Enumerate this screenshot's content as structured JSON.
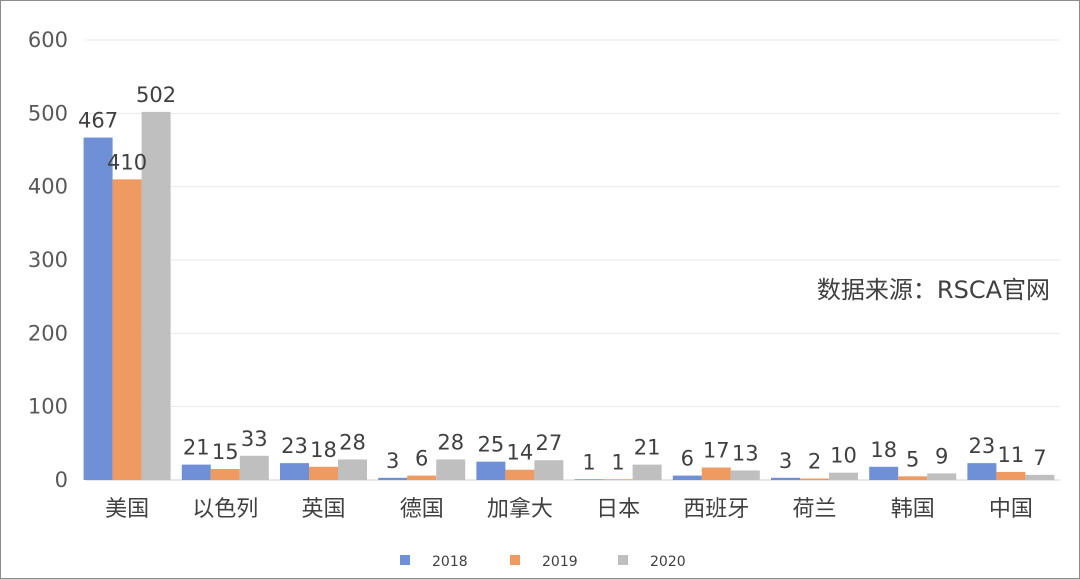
{
  "chart_data": {
    "type": "bar",
    "categories": [
      "美国",
      "以色列",
      "英国",
      "德国",
      "加拿大",
      "日本",
      "西班牙",
      "荷兰",
      "韩国",
      "中国"
    ],
    "series": [
      {
        "name": "2018",
        "values": [
          467,
          21,
          23,
          3,
          25,
          1,
          6,
          3,
          18,
          23
        ],
        "color": "#6f8fd6"
      },
      {
        "name": "2019",
        "values": [
          410,
          15,
          18,
          6,
          14,
          1,
          17,
          2,
          5,
          11
        ],
        "color": "#ef9a61"
      },
      {
        "name": "2020",
        "values": [
          502,
          33,
          28,
          28,
          27,
          21,
          13,
          10,
          9,
          7
        ],
        "color": "#bfbfbf"
      }
    ],
    "yticks": [
      0,
      100,
      200,
      300,
      400,
      500,
      600
    ],
    "ylim": [
      0,
      600
    ],
    "grid": true,
    "legend": "bottom-center",
    "annotation": "数据来源：RSCA官网"
  }
}
